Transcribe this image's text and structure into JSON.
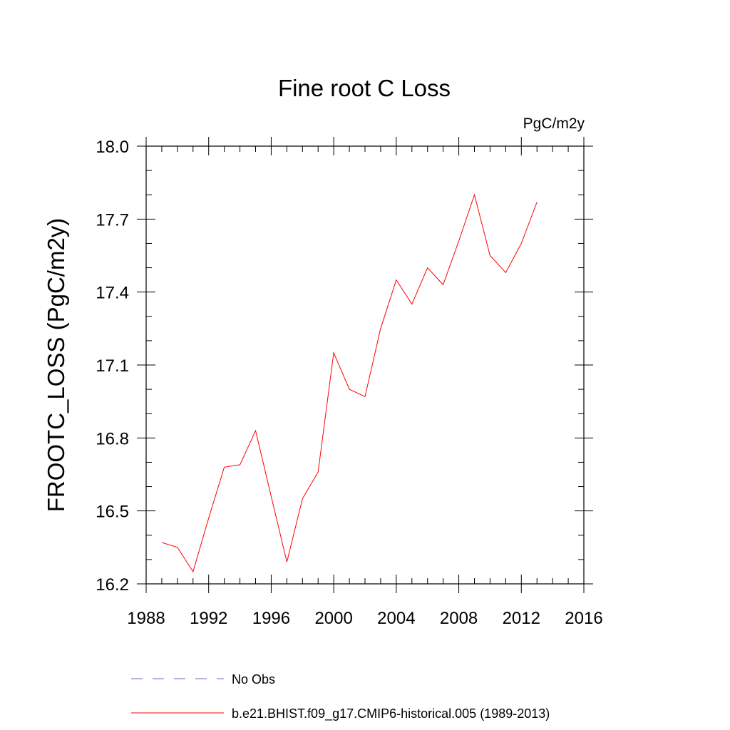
{
  "chart_data": {
    "type": "line",
    "title": "Fine root C Loss",
    "units_label": "PgC/m2y",
    "xlabel": "",
    "ylabel": "FROOTC_LOSS  (PgC/m2y)",
    "xlim": [
      1988,
      2016
    ],
    "ylim": [
      16.2,
      18.0
    ],
    "x_ticks": [
      1988,
      1992,
      1996,
      2000,
      2004,
      2008,
      2012,
      2016
    ],
    "x_tick_labels": [
      "1988",
      "1992",
      "1996",
      "2000",
      "2004",
      "2008",
      "2012",
      "2016"
    ],
    "y_ticks": [
      16.2,
      16.5,
      16.8,
      17.1,
      17.4,
      17.7,
      18.0
    ],
    "y_tick_labels": [
      "16.2",
      "16.5",
      "16.8",
      "17.1",
      "17.4",
      "17.7",
      "18.0"
    ],
    "x_minor_step": 1,
    "y_minor_step": 0.1,
    "grid": false,
    "legend_position": "bottom",
    "series": [
      {
        "name": "b.e21.BHIST.f09_g17.CMIP6-historical.005 (1989-2013)",
        "color": "#ff0000",
        "dash": "solid",
        "x": [
          1989,
          1990,
          1991,
          1992,
          1993,
          1994,
          1995,
          1996,
          1997,
          1998,
          1999,
          2000,
          2001,
          2002,
          2003,
          2004,
          2005,
          2006,
          2007,
          2008,
          2009,
          2010,
          2011,
          2012,
          2013
        ],
        "values": [
          16.37,
          16.35,
          16.25,
          16.47,
          16.68,
          16.69,
          16.83,
          16.56,
          16.29,
          16.55,
          16.66,
          17.15,
          17.0,
          16.97,
          17.25,
          17.45,
          17.35,
          17.5,
          17.43,
          17.61,
          17.8,
          17.55,
          17.48,
          17.6,
          17.77
        ]
      }
    ],
    "legend": [
      {
        "label": "No Obs",
        "color": "#6666cc",
        "dash": "dashed"
      },
      {
        "label": "b.e21.BHIST.f09_g17.CMIP6-historical.005 (1989-2013)",
        "color": "#ff0000",
        "dash": "solid"
      }
    ]
  }
}
